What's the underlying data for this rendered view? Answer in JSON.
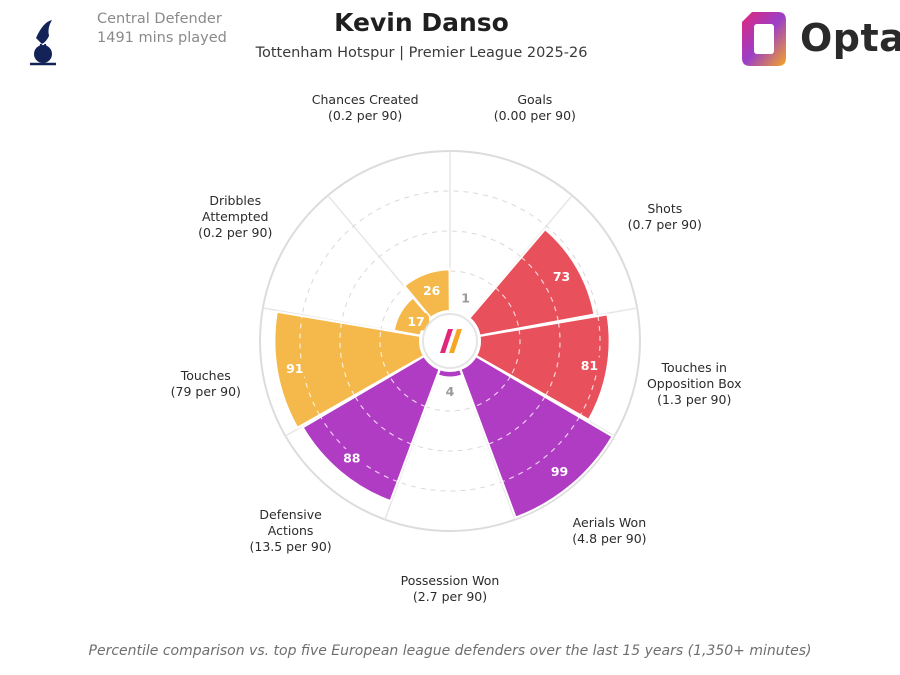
{
  "header": {
    "player_name": "Kevin Danso",
    "team_league": "Tottenham Hotspur | Premier League 2025-26",
    "position": "Central Defender",
    "minutes": "1491 mins played",
    "brand": "Opta"
  },
  "footer": {
    "note": "Percentile comparison vs. top five European league defenders over the last 15 years (1,350+ minutes)"
  },
  "colors": {
    "attacking": "#e8505b",
    "possession": "#f5b84a",
    "defending": "#b03cc4",
    "grid": "#dcdcdc",
    "label": "#2b2b2b",
    "club_navy": "#132257"
  },
  "chart_data": {
    "type": "polar-area",
    "scale": [
      0,
      100
    ],
    "grid": true,
    "metrics": [
      {
        "label": [
          "Goals",
          "(0.00 per 90)"
        ],
        "percentile": 1,
        "group": "attacking"
      },
      {
        "label": [
          "Shots",
          "(0.7 per 90)"
        ],
        "percentile": 73,
        "group": "attacking"
      },
      {
        "label": [
          "Touches in",
          "Opposition Box",
          "(1.3 per 90)"
        ],
        "percentile": 81,
        "group": "attacking"
      },
      {
        "label": [
          "Aerials Won",
          "(4.8 per 90)"
        ],
        "percentile": 99,
        "group": "defending"
      },
      {
        "label": [
          "Possession Won",
          "(2.7 per 90)"
        ],
        "percentile": 4,
        "group": "defending"
      },
      {
        "label": [
          "Defensive",
          "Actions",
          "(13.5 per 90)"
        ],
        "percentile": 88,
        "group": "defending"
      },
      {
        "label": [
          "Touches",
          "(79 per 90)"
        ],
        "percentile": 91,
        "group": "possession"
      },
      {
        "label": [
          "Dribbles",
          "Attempted",
          "(0.2 per 90)"
        ],
        "percentile": 17,
        "group": "possession"
      },
      {
        "label": [
          "Chances Created",
          "(0.2 per 90)"
        ],
        "percentile": 26,
        "group": "possession"
      }
    ]
  }
}
